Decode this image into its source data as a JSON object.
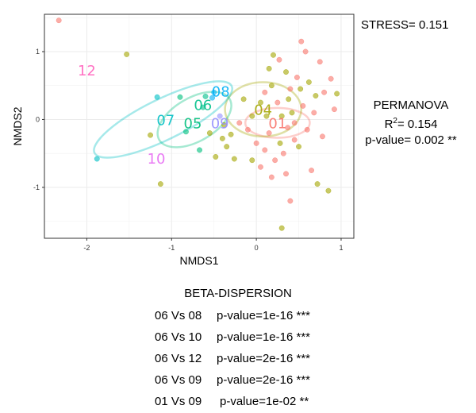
{
  "chart_data": {
    "type": "scatter",
    "xlabel": "NMDS1",
    "ylabel": "NMDS2",
    "xlim": [
      -2.5,
      1.15
    ],
    "ylim": [
      -1.75,
      1.55
    ],
    "x_ticks": [
      -2,
      -1,
      0,
      1
    ],
    "y_ticks": [
      -1,
      0,
      1
    ],
    "grid": true,
    "groups": [
      {
        "label": "01",
        "color": "#F8766D",
        "centroid": [
          0.25,
          -0.05
        ],
        "ellipse": {
          "cx": 0.25,
          "cy": -0.05,
          "rx": 0.38,
          "ry": 0.22,
          "angle": 0
        }
      },
      {
        "label": "04",
        "color": "#A3A500",
        "centroid": [
          0.08,
          0.15
        ],
        "ellipse": {
          "cx": 0.08,
          "cy": 0.15,
          "rx": 0.45,
          "ry": 0.4,
          "angle": 0
        }
      },
      {
        "label": "05",
        "color": "#00BF7D",
        "centroid": [
          -0.75,
          -0.05
        ],
        "ellipse": {
          "cx": -0.73,
          "cy": 0.0,
          "rx": 0.48,
          "ry": 0.32,
          "angle": 30
        }
      },
      {
        "label": "06",
        "color": "#00C08B",
        "centroid": [
          -0.63,
          0.22
        ],
        "ellipse": null
      },
      {
        "label": "07",
        "color": "#00BFC4",
        "centroid": [
          -1.07,
          0.0
        ],
        "ellipse": {
          "cx": -1.1,
          "cy": 0.0,
          "rx": 0.9,
          "ry": 0.3,
          "angle": 26
        }
      },
      {
        "label": "08",
        "color": "#00B0F6",
        "centroid": [
          -0.42,
          0.42
        ],
        "ellipse": null
      },
      {
        "label": "09",
        "color": "#9590FF",
        "centroid": [
          -0.43,
          -0.05
        ],
        "ellipse": null
      },
      {
        "label": "10",
        "color": "#E76BF3",
        "centroid": [
          -1.18,
          -0.57
        ],
        "ellipse": null
      },
      {
        "label": "12",
        "color": "#FF62BC",
        "centroid": [
          -2.0,
          0.73
        ],
        "ellipse": null
      }
    ],
    "points": [
      {
        "x": -2.33,
        "y": 1.46,
        "g": "01"
      },
      {
        "x": -1.53,
        "y": 0.96,
        "g": "04"
      },
      {
        "x": -1.17,
        "y": 0.33,
        "g": "07"
      },
      {
        "x": -1.88,
        "y": -0.58,
        "g": "07"
      },
      {
        "x": -1.25,
        "y": -0.23,
        "g": "04"
      },
      {
        "x": -1.13,
        "y": -0.95,
        "g": "04"
      },
      {
        "x": -0.9,
        "y": 0.33,
        "g": "05"
      },
      {
        "x": -0.83,
        "y": -0.18,
        "g": "05"
      },
      {
        "x": -0.67,
        "y": -0.45,
        "g": "05"
      },
      {
        "x": -0.6,
        "y": 0.34,
        "g": "06"
      },
      {
        "x": -0.63,
        "y": 0.18,
        "g": "06"
      },
      {
        "x": -0.55,
        "y": -0.2,
        "g": "04"
      },
      {
        "x": -0.52,
        "y": 0.32,
        "g": "08"
      },
      {
        "x": -0.5,
        "y": 0.4,
        "g": "08"
      },
      {
        "x": -0.48,
        "y": -0.55,
        "g": "04"
      },
      {
        "x": -0.43,
        "y": 0.05,
        "g": "09"
      },
      {
        "x": -0.4,
        "y": -0.28,
        "g": "04"
      },
      {
        "x": -0.38,
        "y": -0.08,
        "g": "04"
      },
      {
        "x": -0.35,
        "y": -0.4,
        "g": "04"
      },
      {
        "x": -0.3,
        "y": -0.22,
        "g": "04"
      },
      {
        "x": -0.26,
        "y": -0.58,
        "g": "04"
      },
      {
        "x": -0.2,
        "y": -0.05,
        "g": "01"
      },
      {
        "x": -0.15,
        "y": 0.3,
        "g": "04"
      },
      {
        "x": -0.1,
        "y": -0.15,
        "g": "01"
      },
      {
        "x": -0.05,
        "y": 0.05,
        "g": "04"
      },
      {
        "x": 0.0,
        "y": -0.35,
        "g": "01"
      },
      {
        "x": 0.05,
        "y": 0.25,
        "g": "04"
      },
      {
        "x": 0.1,
        "y": -0.45,
        "g": "01"
      },
      {
        "x": 0.12,
        "y": 0.05,
        "g": "04"
      },
      {
        "x": 0.15,
        "y": -0.2,
        "g": "01"
      },
      {
        "x": 0.18,
        "y": 0.5,
        "g": "04"
      },
      {
        "x": 0.2,
        "y": 0.95,
        "g": "04"
      },
      {
        "x": 0.22,
        "y": -0.6,
        "g": "01"
      },
      {
        "x": 0.25,
        "y": 0.25,
        "g": "01"
      },
      {
        "x": 0.27,
        "y": 0.88,
        "g": "01"
      },
      {
        "x": 0.28,
        "y": -0.35,
        "g": "04"
      },
      {
        "x": 0.3,
        "y": 0.05,
        "g": "04"
      },
      {
        "x": 0.32,
        "y": -0.5,
        "g": "01"
      },
      {
        "x": 0.35,
        "y": 0.7,
        "g": "04"
      },
      {
        "x": 0.37,
        "y": -0.12,
        "g": "01"
      },
      {
        "x": 0.38,
        "y": 0.3,
        "g": "04"
      },
      {
        "x": 0.4,
        "y": -1.2,
        "g": "01"
      },
      {
        "x": 0.42,
        "y": 0.1,
        "g": "04"
      },
      {
        "x": 0.45,
        "y": -0.05,
        "g": "01"
      },
      {
        "x": 0.48,
        "y": 0.62,
        "g": "01"
      },
      {
        "x": 0.5,
        "y": -0.4,
        "g": "04"
      },
      {
        "x": 0.52,
        "y": 0.45,
        "g": "04"
      },
      {
        "x": 0.53,
        "y": 1.15,
        "g": "01"
      },
      {
        "x": 0.55,
        "y": 0.2,
        "g": "01"
      },
      {
        "x": 0.58,
        "y": 1.0,
        "g": "01"
      },
      {
        "x": 0.6,
        "y": -0.15,
        "g": "01"
      },
      {
        "x": 0.62,
        "y": 0.55,
        "g": "04"
      },
      {
        "x": 0.65,
        "y": -0.75,
        "g": "01"
      },
      {
        "x": 0.68,
        "y": 0.1,
        "g": "01"
      },
      {
        "x": 0.7,
        "y": 0.35,
        "g": "04"
      },
      {
        "x": 0.72,
        "y": -0.95,
        "g": "04"
      },
      {
        "x": 0.75,
        "y": 0.85,
        "g": "01"
      },
      {
        "x": 0.78,
        "y": -0.25,
        "g": "01"
      },
      {
        "x": 0.8,
        "y": 0.4,
        "g": "01"
      },
      {
        "x": 0.85,
        "y": -1.05,
        "g": "04"
      },
      {
        "x": 0.88,
        "y": 0.6,
        "g": "01"
      },
      {
        "x": 0.92,
        "y": 0.15,
        "g": "01"
      },
      {
        "x": 0.95,
        "y": 0.38,
        "g": "04"
      },
      {
        "x": 0.3,
        "y": -1.6,
        "g": "04"
      },
      {
        "x": 0.15,
        "y": 0.75,
        "g": "04"
      },
      {
        "x": -0.05,
        "y": -0.6,
        "g": "04"
      },
      {
        "x": 0.05,
        "y": -0.7,
        "g": "01"
      },
      {
        "x": 0.18,
        "y": -0.85,
        "g": "01"
      },
      {
        "x": 0.35,
        "y": -0.8,
        "g": "01"
      },
      {
        "x": 0.4,
        "y": 0.45,
        "g": "01"
      },
      {
        "x": 0.1,
        "y": 0.4,
        "g": "01"
      },
      {
        "x": 0.45,
        "y": -0.3,
        "g": "01"
      }
    ]
  },
  "annotations": {
    "stress": "STRESS= 0.151",
    "permanova": {
      "title": "PERMANOVA",
      "r2_label": "R",
      "r2_sup": "2",
      "r2_value": "= 0.154",
      "pvalue": "p-value= 0.002 **"
    }
  },
  "beta_dispersion": {
    "title": "BETA-DISPERSION",
    "rows": [
      {
        "comparison": "06 Vs 08",
        "pvalue": "p-value=1e-16 ***"
      },
      {
        "comparison": "06 Vs 10",
        "pvalue": "p-value=1e-16 ***"
      },
      {
        "comparison": "06 Vs 12",
        "pvalue": "p-value=2e-16 ***"
      },
      {
        "comparison": "06 Vs 09",
        "pvalue": "p-value=2e-16 ***"
      },
      {
        "comparison": "01 Vs 09",
        "pvalue": "p-value=1e-02 **"
      }
    ]
  }
}
